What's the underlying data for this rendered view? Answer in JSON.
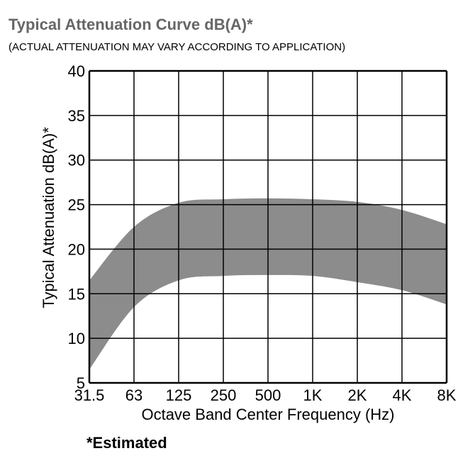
{
  "title": "Typical Attenuation Curve dB(A)*",
  "subtitle": "(ACTUAL ATTENUATION MAY VARY ACCORDING TO APPLICATION)",
  "footnote": "*Estimated",
  "colors": {
    "band": "#8c8c8c",
    "grid": "#000000",
    "title": "#666666"
  },
  "chart_data": {
    "type": "area",
    "title": "Typical Attenuation Curve dB(A)*",
    "xlabel": "Octave Band Center Frequency (Hz)",
    "ylabel": "Typical Attenuation dB(A)*",
    "categories": [
      "31.5",
      "63",
      "125",
      "250",
      "500",
      "1K",
      "2K",
      "4K",
      "8K"
    ],
    "ylim": [
      5,
      40
    ],
    "yticks": [
      5,
      10,
      15,
      20,
      25,
      30,
      35,
      40
    ],
    "grid": true,
    "series": [
      {
        "values_upper": [
          16.5,
          22.5,
          25.2,
          25.6,
          25.7,
          25.6,
          25.3,
          24.4,
          22.8
        ]
      },
      {
        "values_lower": [
          6.5,
          13.5,
          16.5,
          17.0,
          17.1,
          17.0,
          16.3,
          15.4,
          13.8
        ]
      }
    ]
  }
}
